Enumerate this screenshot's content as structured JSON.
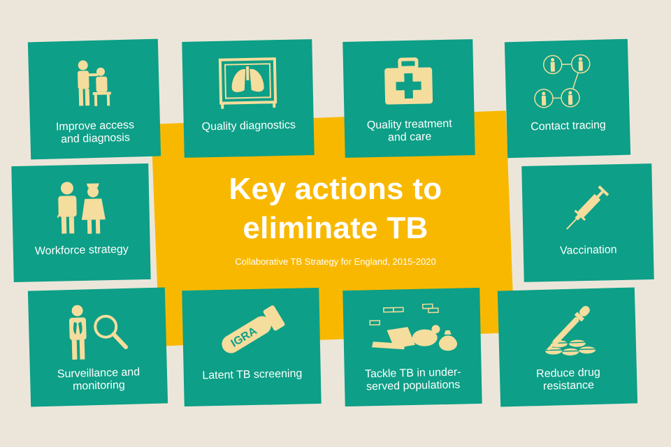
{
  "title_line1": "Key actions to",
  "title_line2": "eliminate TB",
  "subtitle": "Collaborative TB Strategy for England, 2015-2020",
  "colors": {
    "background": "#ece6da",
    "tile": "#0d9f87",
    "center": "#f9b800",
    "icon": "#f5dd9d"
  },
  "actions": [
    {
      "label_l1": "Improve access",
      "label_l2": "and diagnosis",
      "icon": "doctor-patient-icon"
    },
    {
      "label_l1": "Quality diagnostics",
      "label_l2": "",
      "icon": "lung-xray-icon"
    },
    {
      "label_l1": "Quality treatment",
      "label_l2": "and care",
      "icon": "first-aid-kit-icon"
    },
    {
      "label_l1": "Contact tracing",
      "label_l2": "",
      "icon": "people-network-icon"
    },
    {
      "label_l1": "Workforce strategy",
      "label_l2": "",
      "icon": "doctor-nurse-icon"
    },
    {
      "label_l1": "Vaccination",
      "label_l2": "",
      "icon": "syringe-icon"
    },
    {
      "label_l1": "Surveillance and",
      "label_l2": "monitoring",
      "icon": "person-magnifier-icon"
    },
    {
      "label_l1": "Latent TB screening",
      "label_l2": "",
      "icon": "igra-tube-icon",
      "tube_text": "IGRA"
    },
    {
      "label_l1": "Tackle TB in under-",
      "label_l2": "served populations",
      "icon": "homeless-icon"
    },
    {
      "label_l1": "Reduce drug",
      "label_l2": "resistance",
      "icon": "pipette-pills-icon"
    }
  ]
}
